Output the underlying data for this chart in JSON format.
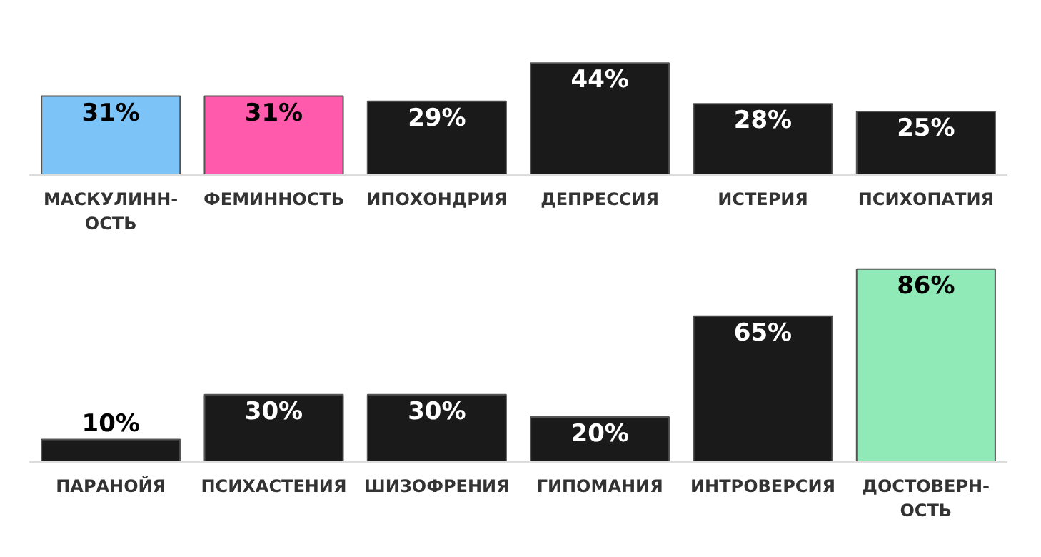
{
  "chart_data": [
    {
      "type": "bar",
      "categories": [
        "МАСКУЛИНН-\nОСТЬ",
        "ФЕМИННОСТЬ",
        "ИПОХОНДРИЯ",
        "ДЕПРЕССИЯ",
        "ИСТЕРИЯ",
        "ПСИХОПАТИЯ"
      ],
      "values": [
        31,
        31,
        29,
        44,
        28,
        25
      ],
      "value_labels": [
        "31%",
        "31%",
        "29%",
        "44%",
        "28%",
        "25%"
      ],
      "colors": [
        "#7cc4f8",
        "#ff5aac",
        "#1a1a1a",
        "#1a1a1a",
        "#1a1a1a",
        "#1a1a1a"
      ],
      "tick_labels": "x"
    },
    {
      "type": "bar",
      "categories": [
        "ПАРАНОЙЯ",
        "ПСИХАСТЕНИЯ",
        "ШИЗОФРЕНИЯ",
        "ГИПОМАНИЯ",
        "ИНТРОВЕРСИЯ",
        "ДОСТОВЕРН-\nОСТЬ"
      ],
      "values": [
        10,
        30,
        30,
        20,
        65,
        86
      ],
      "value_labels": [
        "10%",
        "30%",
        "30%",
        "20%",
        "65%",
        "86%"
      ],
      "colors": [
        "#1a1a1a",
        "#1a1a1a",
        "#1a1a1a",
        "#1a1a1a",
        "#1a1a1a",
        "#90eab8"
      ],
      "tick_labels": "x"
    }
  ]
}
